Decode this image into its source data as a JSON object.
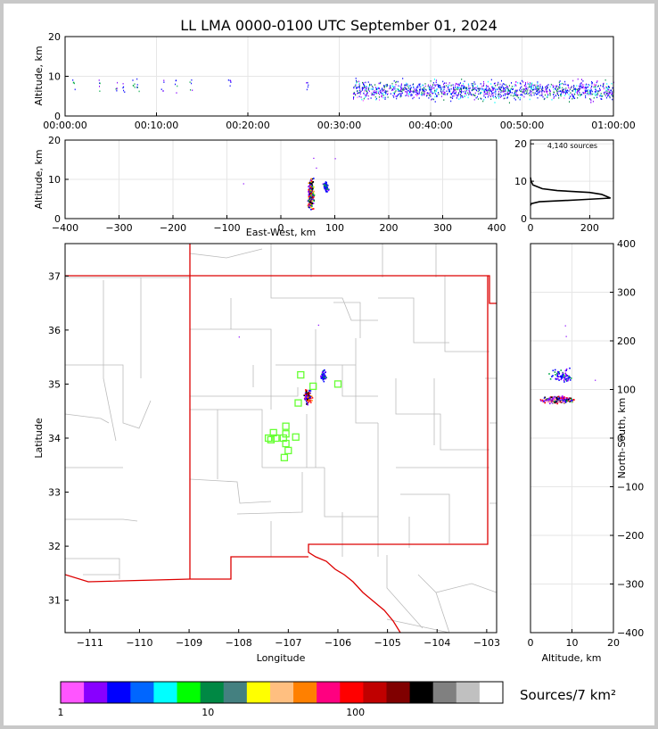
{
  "chart_data": [
    {
      "type": "scatter",
      "panel": "altitude-vs-time",
      "title": "LL LMA 0000-0100 UTC September 01, 2024",
      "xlabel": "",
      "ylabel": "Altitude, km",
      "xlim": [
        "00:00:00",
        "01:00:00"
      ],
      "ylim": [
        0,
        20
      ],
      "xticks": [
        "00:00:00",
        "00:10:00",
        "00:20:00",
        "00:30:00",
        "00:40:00",
        "00:50:00",
        "01:00:00"
      ],
      "yticks": [
        "0",
        "10",
        "20"
      ],
      "grid": true
    },
    {
      "type": "scatter",
      "panel": "altitude-vs-east-west",
      "xlabel": "East-West, km",
      "ylabel": "Altitude, km",
      "xlim": [
        -400,
        400
      ],
      "ylim": [
        0,
        20
      ],
      "xticks": [
        "−400",
        "−300",
        "−200",
        "−100",
        "0",
        "100",
        "200",
        "300",
        "400"
      ],
      "yticks": [
        "0",
        "10",
        "20"
      ],
      "grid": true
    },
    {
      "type": "line",
      "panel": "altitude-histogram",
      "annotation": "4,140 sources",
      "xlim": [
        0,
        280
      ],
      "ylim": [
        0,
        21
      ],
      "xticks": [
        "0",
        "200"
      ],
      "yticks": [
        "0",
        "10",
        "20"
      ],
      "profile": [
        {
          "alt": 3.5,
          "count": 0
        },
        {
          "alt": 4.0,
          "count": 3
        },
        {
          "alt": 4.5,
          "count": 30
        },
        {
          "alt": 5.0,
          "count": 160
        },
        {
          "alt": 5.5,
          "count": 270
        },
        {
          "alt": 6.0,
          "count": 255
        },
        {
          "alt": 6.5,
          "count": 240
        },
        {
          "alt": 7.0,
          "count": 200
        },
        {
          "alt": 7.5,
          "count": 90
        },
        {
          "alt": 8.0,
          "count": 40
        },
        {
          "alt": 9.0,
          "count": 8
        },
        {
          "alt": 9.5,
          "count": 5
        },
        {
          "alt": 10.0,
          "count": 2
        },
        {
          "alt": 11.0,
          "count": 0
        }
      ]
    },
    {
      "type": "map",
      "panel": "plan-view",
      "xlabel": "Longitude",
      "ylabel": "Latitude",
      "xlim": [
        -111.5,
        -102.8
      ],
      "ylim": [
        30.4,
        37.6
      ],
      "xticks": [
        "−111",
        "−110",
        "−109",
        "−108",
        "−107",
        "−106",
        "−105",
        "−104",
        "−103"
      ],
      "yticks": [
        "31",
        "32",
        "33",
        "34",
        "35",
        "36",
        "37"
      ],
      "stations": [
        {
          "lon": -107.05,
          "lat": 34.22
        },
        {
          "lon": -107.3,
          "lat": 34.1
        },
        {
          "lon": -107.05,
          "lat": 34.08
        },
        {
          "lon": -107.4,
          "lat": 34.0
        },
        {
          "lon": -107.25,
          "lat": 34.0
        },
        {
          "lon": -107.1,
          "lat": 34.0
        },
        {
          "lon": -106.85,
          "lat": 34.02
        },
        {
          "lon": -107.35,
          "lat": 33.97
        },
        {
          "lon": -107.05,
          "lat": 33.9
        },
        {
          "lon": -107.0,
          "lat": 33.77
        },
        {
          "lon": -107.08,
          "lat": 33.64
        },
        {
          "lon": -106.8,
          "lat": 34.65
        },
        {
          "lon": -106.75,
          "lat": 35.17
        },
        {
          "lon": -106.5,
          "lat": 34.96
        },
        {
          "lon": -106.0,
          "lat": 35.0
        }
      ]
    },
    {
      "type": "scatter",
      "panel": "north-south-vs-altitude",
      "xlabel": "Altitude, km",
      "ylabel": "North-South, km",
      "xlim": [
        0,
        20
      ],
      "ylim": [
        -400,
        400
      ],
      "xticks": [
        "0",
        "10",
        "20"
      ],
      "yticks": [
        "−400",
        "−300",
        "−200",
        "−100",
        "0",
        "100",
        "200",
        "300",
        "400"
      ],
      "grid": true
    },
    {
      "type": "colorbar",
      "panel": "density-colorbar",
      "label": "Sources/7 km²",
      "ticks": [
        "1",
        "10",
        "100"
      ],
      "colors": [
        "#ff55ff",
        "#8800ff",
        "#0000ff",
        "#0066ff",
        "#00ffff",
        "#00ff00",
        "#008844",
        "#448080",
        "#ffff00",
        "#ffbf80",
        "#ff8000",
        "#ff0080",
        "#ff0000",
        "#c00000",
        "#800000",
        "#000000",
        "#808080",
        "#c0c0c0",
        "#ffffff"
      ]
    }
  ]
}
